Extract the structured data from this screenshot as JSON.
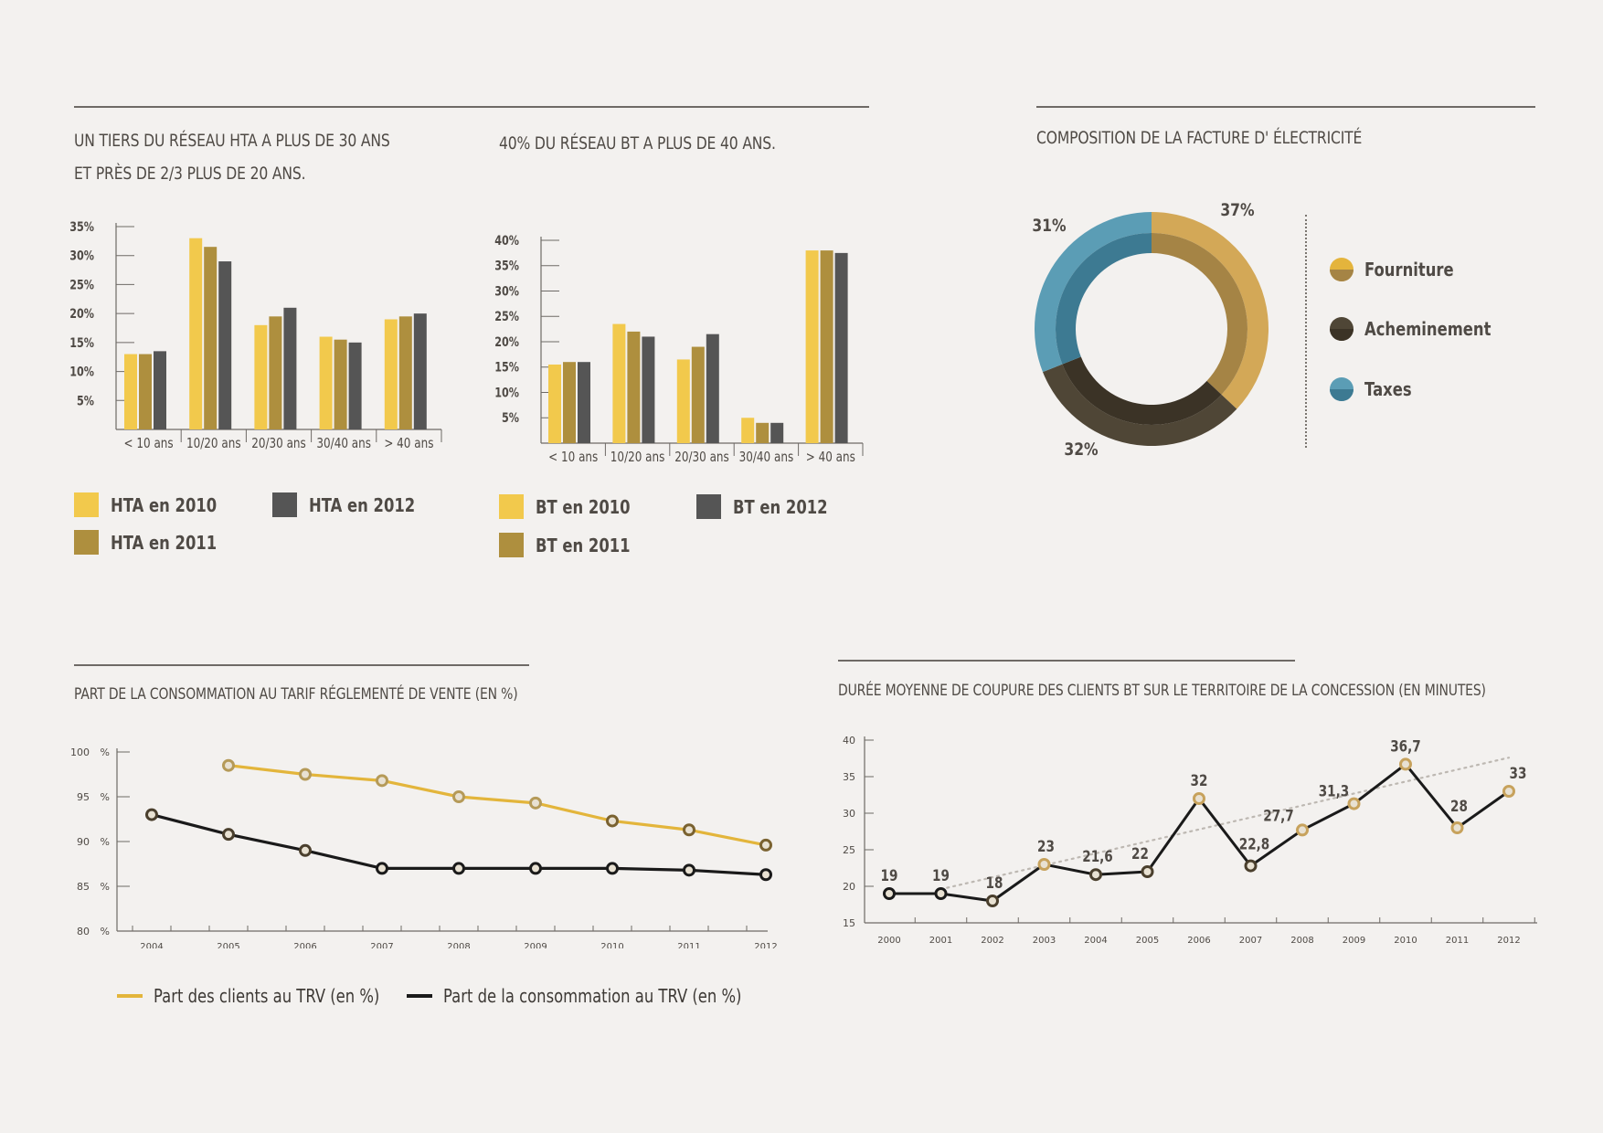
{
  "colors": {
    "hta2010": "#f2c94c",
    "hta2011": "#ae8f3e",
    "hta2012": "#555555",
    "fourniture": "#d3a857",
    "fourniture_dark": "#a58445",
    "acheminement": "#4f4636",
    "acheminement_dark": "#3b3326",
    "taxes": "#5b9db5",
    "taxes_dark": "#3d7a92",
    "trv_clients": "#e3b53b",
    "trv_conso": "#1a1a1a"
  },
  "chart_data": [
    {
      "id": "hta",
      "type": "bar",
      "title_line1": "UN TIERS DU RÉSEAU HTA A PLUS DE 30 ANS",
      "title_line2": "ET PRÈS DE 2/3 PLUS DE 20 ANS.",
      "categories": [
        "< 10 ans",
        "10/20 ans",
        "20/30 ans",
        "30/40 ans",
        "> 40 ans"
      ],
      "yticks": [
        "5%",
        "10%",
        "15%",
        "20%",
        "25%",
        "30%",
        "35%"
      ],
      "ylim": [
        0,
        35
      ],
      "series": [
        {
          "name": "HTA en 2010",
          "values": [
            13,
            33,
            18,
            16,
            19
          ]
        },
        {
          "name": "HTA en 2011",
          "values": [
            13,
            31.5,
            19.5,
            15.5,
            19.5
          ]
        },
        {
          "name": "HTA en 2012",
          "values": [
            13.5,
            29,
            21,
            15,
            20
          ]
        }
      ]
    },
    {
      "id": "bt",
      "type": "bar",
      "title_line1": "40% DU RÉSEAU BT A PLUS DE 40 ANS.",
      "categories": [
        "< 10 ans",
        "10/20 ans",
        "20/30 ans",
        "30/40 ans",
        "> 40 ans"
      ],
      "yticks": [
        "5%",
        "10%",
        "15%",
        "20%",
        "25%",
        "30%",
        "35%",
        "40%"
      ],
      "ylim": [
        0,
        40
      ],
      "series": [
        {
          "name": "BT en 2010",
          "values": [
            15.5,
            23.5,
            16.5,
            5,
            38
          ]
        },
        {
          "name": "BT en 2011",
          "values": [
            16,
            22,
            19,
            4,
            38
          ]
        },
        {
          "name": "BT en 2012",
          "values": [
            16,
            21,
            21.5,
            4,
            37.5
          ]
        }
      ]
    },
    {
      "id": "facture",
      "type": "pie",
      "title": "COMPOSITION DE LA FACTURE D' ÉLECTRICITÉ",
      "slices": [
        {
          "name": "Fourniture",
          "value": 37,
          "label": "37%"
        },
        {
          "name": "Acheminement",
          "value": 32,
          "label": "32%"
        },
        {
          "name": "Taxes",
          "value": 31,
          "label": "31%"
        }
      ]
    },
    {
      "id": "trv",
      "type": "line",
      "title": "PART DE LA CONSOMMATION AU TARIF RÉGLEMENTÉ DE VENTE (EN %)",
      "x": [
        "2004",
        "2005",
        "2006",
        "2007",
        "2008",
        "2009",
        "2010",
        "2011",
        "2012"
      ],
      "yticks": [
        "80",
        "85",
        "90",
        "95",
        "100"
      ],
      "yunit": "%",
      "ylim": [
        80,
        100
      ],
      "series": [
        {
          "name": "Part des clients au TRV (en %)",
          "values": [
            null,
            98.5,
            97.5,
            96.8,
            95,
            94.3,
            92.3,
            91.3,
            89.6
          ]
        },
        {
          "name": "Part de la consommation au TRV (en %)",
          "values": [
            93,
            90.8,
            89,
            87,
            87,
            87,
            87,
            86.8,
            86.3
          ]
        }
      ]
    },
    {
      "id": "coupure",
      "type": "line",
      "title": "DURÉE MOYENNE DE COUPURE DES CLIENTS BT SUR LE TERRITOIRE DE LA CONCESSION (EN MINUTES)",
      "x": [
        "2000",
        "2001",
        "2002",
        "2003",
        "2004",
        "2005",
        "2006",
        "2007",
        "2008",
        "2009",
        "2010",
        "2011",
        "2012"
      ],
      "yticks": [
        "15",
        "20",
        "25",
        "30",
        "35",
        "40"
      ],
      "ylim": [
        15,
        40
      ],
      "values": [
        19,
        19,
        18,
        23,
        21.6,
        22,
        32,
        22.8,
        27.7,
        31.3,
        36.7,
        28,
        33
      ],
      "labels": [
        "19",
        "19",
        "18",
        "23",
        "21,6",
        "22",
        "32",
        "22,8",
        "27,7",
        "31,3",
        "36,7",
        "28",
        "33"
      ],
      "trend": [
        null,
        19.6,
        null,
        null,
        null,
        null,
        null,
        null,
        null,
        null,
        null,
        null,
        37.6
      ]
    }
  ]
}
